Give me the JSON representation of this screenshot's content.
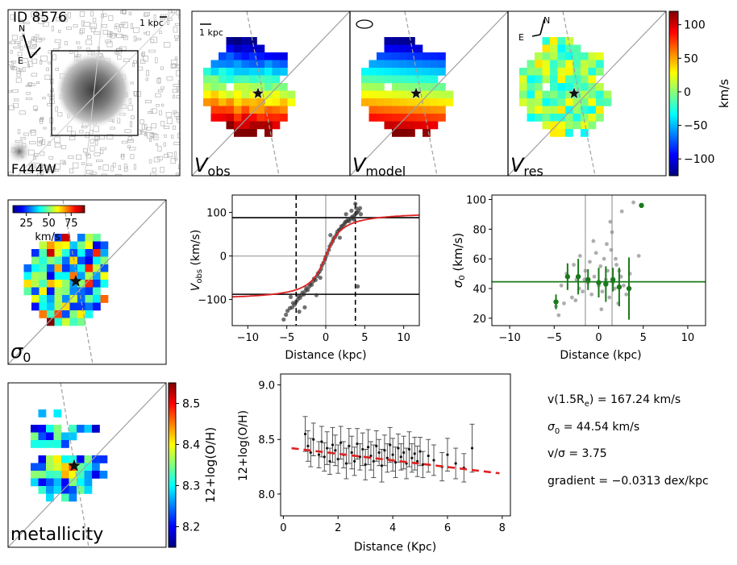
{
  "colors": {
    "axis": "#000000",
    "ref_gray": "#b0b0b0",
    "fit_red": "#e02020",
    "sigma_green": "#1a7a1a",
    "scatter_gray": "#8a8a8a",
    "point_dark": "#222222"
  },
  "image_panel": {
    "id_label": "ID 8576",
    "filter_label": "F444W",
    "scale_label": "1 kpc",
    "north": "N",
    "east": "E"
  },
  "map_panels": [
    {
      "label_main": "V",
      "label_sub": "obs",
      "scale_label": "1 kpc"
    },
    {
      "label_main": "V",
      "label_sub": "model"
    },
    {
      "label_main": "V",
      "label_sub": "res",
      "north": "N",
      "east": "E"
    }
  ],
  "velocity_colorbar": {
    "ticks": [
      100,
      50,
      0,
      -50,
      -100
    ],
    "tick_labels": [
      "100",
      "50",
      "0",
      "−50",
      "−100"
    ],
    "range": [
      -125,
      120
    ],
    "label": "km/s"
  },
  "sigma_map": {
    "label_main": "σ",
    "label_sub": "0",
    "colorbar_ticks": [
      25,
      50,
      75
    ],
    "colorbar_tick_labels": [
      "25",
      "50",
      "75"
    ],
    "colorbar_range": [
      10,
      90
    ],
    "colorbar_label": "km/s"
  },
  "metal_map": {
    "label": "metallicity",
    "colorbar_ticks": [
      8.5,
      8.4,
      8.3,
      8.2
    ],
    "colorbar_tick_labels": [
      "8.5",
      "8.4",
      "8.3",
      "8.2"
    ],
    "colorbar_range": [
      8.15,
      8.55
    ],
    "colorbar_label": "12+log(O/H)"
  },
  "summary": {
    "line1_label": "v(1.5R",
    "line1_sub": "e",
    "line1_value": ") = 167.24 km/s",
    "line2_label": "σ",
    "line2_sub": "0",
    "line2_value": " = 44.54 km/s",
    "line3": "v/σ = 3.75",
    "line4": "gradient = −0.0313 dex/kpc"
  },
  "chart_data": [
    {
      "type": "scatter",
      "title": "",
      "xlabel": "Distance (kpc)",
      "ylabel": "V_obs (km/s)",
      "ylabel_main": "V",
      "ylabel_sub": "obs",
      "ylabel_unit": " (km/s)",
      "xlim": [
        -12,
        12
      ],
      "ylim": [
        -160,
        140
      ],
      "xticks": [
        -10,
        -5,
        0,
        5,
        10
      ],
      "xtick_labels": [
        "−10",
        "−5",
        "0",
        "5",
        "10"
      ],
      "yticks": [
        -100,
        0,
        100
      ],
      "ytick_labels": [
        "−100",
        "0",
        "100"
      ],
      "hlines": [
        88,
        -88
      ],
      "vlines_dashed": [
        -3.8,
        3.8
      ],
      "ref_lines": {
        "x": 0,
        "y": 0
      },
      "fit_curve": {
        "vmax": 102,
        "rt": 1.5,
        "color": "red"
      },
      "points": [
        [
          -5.4,
          -146
        ],
        [
          -5.1,
          -135
        ],
        [
          -4.9,
          -126
        ],
        [
          -4.6,
          -120
        ],
        [
          -4.3,
          -118
        ],
        [
          -4.2,
          -108
        ],
        [
          -4.0,
          -112
        ],
        [
          -3.8,
          -105
        ],
        [
          -3.6,
          -100
        ],
        [
          -3.5,
          -92
        ],
        [
          -3.3,
          -96
        ],
        [
          -3.1,
          -90
        ],
        [
          -3.0,
          -84
        ],
        [
          -2.8,
          -88
        ],
        [
          -2.6,
          -80
        ],
        [
          -2.5,
          -74
        ],
        [
          -2.3,
          -78
        ],
        [
          -2.1,
          -70
        ],
        [
          -2.0,
          -64
        ],
        [
          -1.8,
          -66
        ],
        [
          -1.6,
          -58
        ],
        [
          -1.5,
          -52
        ],
        [
          -1.3,
          -55
        ],
        [
          -1.1,
          -46
        ],
        [
          -1.0,
          -40
        ],
        [
          -0.8,
          -36
        ],
        [
          -0.6,
          -30
        ],
        [
          -0.5,
          -22
        ],
        [
          -0.3,
          -16
        ],
        [
          -0.1,
          -8
        ],
        [
          0.0,
          -2
        ],
        [
          0.2,
          6
        ],
        [
          0.4,
          14
        ],
        [
          0.5,
          22
        ],
        [
          0.7,
          28
        ],
        [
          0.9,
          34
        ],
        [
          1.0,
          40
        ],
        [
          1.2,
          44
        ],
        [
          1.4,
          50
        ],
        [
          1.5,
          56
        ],
        [
          1.7,
          60
        ],
        [
          1.9,
          62
        ],
        [
          2.0,
          68
        ],
        [
          2.2,
          70
        ],
        [
          2.4,
          74
        ],
        [
          2.5,
          78
        ],
        [
          2.7,
          80
        ],
        [
          2.9,
          84
        ],
        [
          3.0,
          80
        ],
        [
          3.2,
          86
        ],
        [
          3.4,
          90
        ],
        [
          3.5,
          88
        ],
        [
          3.7,
          94
        ],
        [
          3.9,
          98
        ],
        [
          4.0,
          100
        ],
        [
          4.2,
          104
        ],
        [
          4.4,
          110
        ],
        [
          4.5,
          96
        ],
        [
          3.6,
          84
        ],
        [
          3.9,
          110
        ],
        [
          -2.7,
          -118
        ],
        [
          -3.4,
          -128
        ],
        [
          -1.2,
          -90
        ],
        [
          1.8,
          42
        ],
        [
          2.6,
          96
        ],
        [
          3.3,
          104
        ],
        [
          -4.5,
          -94
        ],
        [
          4.1,
          -70
        ],
        [
          0.6,
          48
        ],
        [
          -0.7,
          -50
        ],
        [
          3.8,
          120
        ]
      ]
    },
    {
      "type": "scatter",
      "title": "",
      "xlabel": "Distance (kpc)",
      "ylabel": "σ0 (km/s)",
      "ylabel_main": "σ",
      "ylabel_sub": "0",
      "ylabel_unit": " (km/s)",
      "xlim": [
        -12,
        12
      ],
      "ylim": [
        15,
        103
      ],
      "xticks": [
        -10,
        -5,
        0,
        5,
        10
      ],
      "xtick_labels": [
        "−10",
        "−5",
        "0",
        "5",
        "10"
      ],
      "yticks": [
        20,
        40,
        60,
        80,
        100
      ],
      "ytick_labels": [
        "20",
        "40",
        "60",
        "80",
        "100"
      ],
      "hline": 44.54,
      "vlines": [
        -1.5,
        1.5
      ],
      "gray_points": [
        [
          -4.8,
          28
        ],
        [
          -4.2,
          42
        ],
        [
          -3.6,
          50
        ],
        [
          -3.0,
          34
        ],
        [
          -2.8,
          56
        ],
        [
          -2.5,
          46
        ],
        [
          -2.1,
          62
        ],
        [
          -1.8,
          38
        ],
        [
          -1.5,
          52
        ],
        [
          -1.2,
          44
        ],
        [
          -1.0,
          58
        ],
        [
          -0.8,
          36
        ],
        [
          -0.5,
          48
        ],
        [
          -0.3,
          64
        ],
        [
          0.0,
          42
        ],
        [
          0.2,
          55
        ],
        [
          0.4,
          38
        ],
        [
          0.6,
          60
        ],
        [
          0.8,
          46
        ],
        [
          1.0,
          52
        ],
        [
          1.2,
          34
        ],
        [
          1.4,
          66
        ],
        [
          1.6,
          44
        ],
        [
          1.8,
          40
        ],
        [
          2.0,
          56
        ],
        [
          2.2,
          30
        ],
        [
          2.5,
          48
        ],
        [
          2.8,
          42
        ],
        [
          3.1,
          36
        ],
        [
          3.5,
          50
        ],
        [
          -3.9,
          30
        ],
        [
          -2.2,
          40
        ],
        [
          0.9,
          70
        ],
        [
          1.3,
          85
        ],
        [
          1.5,
          78
        ],
        [
          2.6,
          92
        ],
        [
          3.9,
          98
        ],
        [
          4.5,
          62
        ],
        [
          -4.5,
          22
        ],
        [
          -0.6,
          72
        ],
        [
          0.3,
          26
        ],
        [
          1.9,
          60
        ],
        [
          -1.6,
          46
        ],
        [
          2.3,
          52
        ],
        [
          -2.6,
          32
        ]
      ],
      "green_points": [
        [
          -4.8,
          31,
          5
        ],
        [
          -3.5,
          48,
          9
        ],
        [
          -2.3,
          48,
          12
        ],
        [
          -1.2,
          46,
          7
        ],
        [
          0.0,
          44,
          10
        ],
        [
          0.8,
          43,
          12
        ],
        [
          1.6,
          46,
          8
        ],
        [
          2.3,
          41,
          13
        ],
        [
          3.4,
          40,
          21
        ]
      ],
      "green_outlier": [
        4.8,
        96
      ]
    },
    {
      "type": "scatter",
      "title": "",
      "xlabel": "Distance (Kpc)",
      "ylabel": "12+log(O/H)",
      "xlim": [
        -0.1,
        8.3
      ],
      "ylim": [
        7.8,
        9.1
      ],
      "xticks": [
        0,
        2,
        4,
        6,
        8
      ],
      "xtick_labels": [
        "0",
        "2",
        "4",
        "6",
        "8"
      ],
      "yticks": [
        8.0,
        8.5,
        9.0
      ],
      "ytick_labels": [
        "8.0",
        "8.5",
        "9.0"
      ],
      "fit_line": {
        "x": [
          0.3,
          7.9
        ],
        "y": [
          8.42,
          8.19
        ],
        "slope": -0.0313
      },
      "points": [
        [
          0.8,
          8.55,
          0.16
        ],
        [
          0.9,
          8.44,
          0.14
        ],
        [
          1.0,
          8.38,
          0.13
        ],
        [
          1.1,
          8.5,
          0.15
        ],
        [
          1.3,
          8.36,
          0.12
        ],
        [
          1.4,
          8.48,
          0.14
        ],
        [
          1.5,
          8.34,
          0.13
        ],
        [
          1.6,
          8.42,
          0.15
        ],
        [
          1.7,
          8.3,
          0.12
        ],
        [
          1.8,
          8.45,
          0.16
        ],
        [
          1.9,
          8.4,
          0.14
        ],
        [
          2.0,
          8.32,
          0.13
        ],
        [
          2.1,
          8.47,
          0.15
        ],
        [
          2.2,
          8.36,
          0.12
        ],
        [
          2.3,
          8.28,
          0.14
        ],
        [
          2.4,
          8.44,
          0.16
        ],
        [
          2.5,
          8.38,
          0.15
        ],
        [
          2.6,
          8.3,
          0.13
        ],
        [
          2.7,
          8.46,
          0.14
        ],
        [
          2.8,
          8.34,
          0.12
        ],
        [
          2.9,
          8.41,
          0.15
        ],
        [
          3.0,
          8.27,
          0.14
        ],
        [
          3.1,
          8.43,
          0.16
        ],
        [
          3.2,
          8.35,
          0.13
        ],
        [
          3.3,
          8.3,
          0.15
        ],
        [
          3.4,
          8.44,
          0.14
        ],
        [
          3.5,
          8.38,
          0.12
        ],
        [
          3.6,
          8.26,
          0.15
        ],
        [
          3.7,
          8.4,
          0.14
        ],
        [
          3.8,
          8.33,
          0.13
        ],
        [
          3.9,
          8.45,
          0.16
        ],
        [
          4.0,
          8.36,
          0.15
        ],
        [
          4.1,
          8.29,
          0.14
        ],
        [
          4.2,
          8.42,
          0.13
        ],
        [
          4.3,
          8.34,
          0.12
        ],
        [
          4.4,
          8.38,
          0.15
        ],
        [
          4.5,
          8.28,
          0.14
        ],
        [
          4.6,
          8.41,
          0.16
        ],
        [
          4.7,
          8.33,
          0.13
        ],
        [
          4.8,
          8.37,
          0.15
        ],
        [
          4.9,
          8.3,
          0.14
        ],
        [
          5.0,
          8.39,
          0.13
        ],
        [
          5.1,
          8.27,
          0.12
        ],
        [
          5.3,
          8.35,
          0.15
        ],
        [
          5.5,
          8.31,
          0.14
        ],
        [
          5.8,
          8.25,
          0.13
        ],
        [
          6.0,
          8.36,
          0.15
        ],
        [
          6.3,
          8.28,
          0.14
        ],
        [
          6.6,
          8.24,
          0.13
        ],
        [
          6.9,
          8.42,
          0.22
        ]
      ]
    }
  ]
}
